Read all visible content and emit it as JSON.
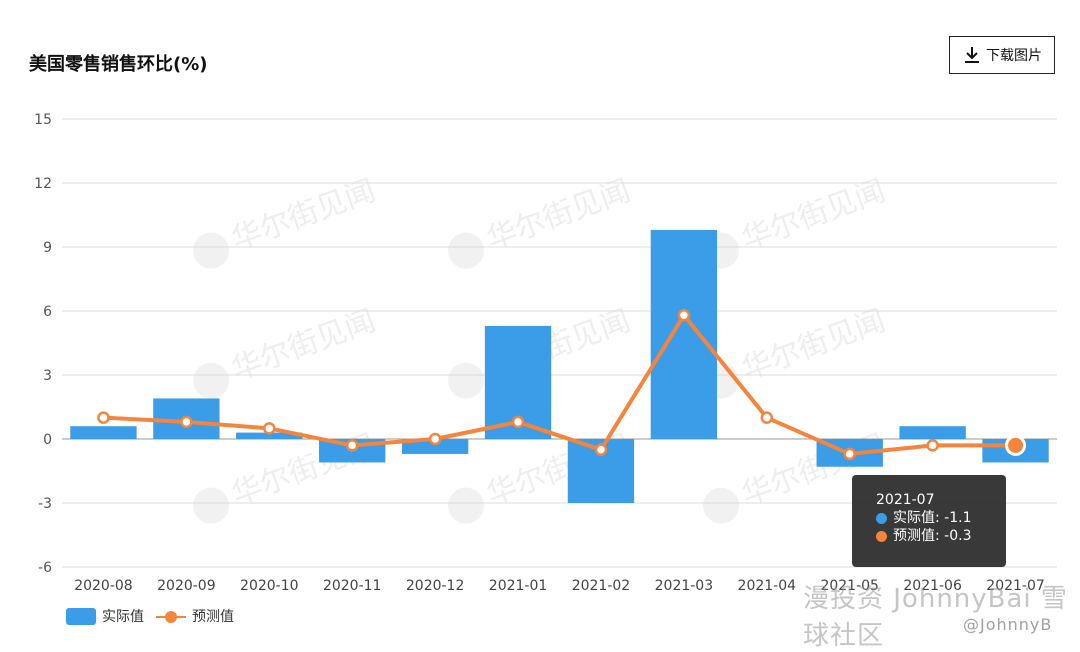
{
  "header": {
    "title": "美国零售销售环比(%)",
    "download_label": "下载图片"
  },
  "chart_data": {
    "type": "bar",
    "title": "美国零售销售环比(%)",
    "categories": [
      "2020-08",
      "2020-09",
      "2020-10",
      "2020-11",
      "2020-12",
      "2021-01",
      "2021-02",
      "2021-03",
      "2021-04",
      "2021-05",
      "2021-06",
      "2021-07"
    ],
    "x_tick_labels": [
      "2020-08",
      "2020-09",
      "2020-10",
      "2020-11",
      "2020-12",
      "2021-01",
      "2021-02",
      "2021-03",
      "2021-04",
      "2021-05",
      "2021-06",
      "2021-07"
    ],
    "series": [
      {
        "name": "实际值",
        "type": "bar",
        "color": "#3b9ce8",
        "values": [
          0.6,
          1.9,
          0.3,
          -1.1,
          -0.7,
          5.3,
          -3.0,
          9.8,
          0.0,
          -1.3,
          0.6,
          -1.1
        ]
      },
      {
        "name": "预测值",
        "type": "line",
        "color": "#f5843d",
        "values": [
          1.0,
          0.8,
          0.5,
          -0.3,
          0.0,
          0.8,
          -0.5,
          5.8,
          1.0,
          -0.7,
          -0.3,
          -0.3
        ]
      }
    ],
    "ylim": [
      -6,
      15
    ],
    "yticks": [
      -6,
      -3,
      0,
      3,
      6,
      9,
      12,
      15
    ],
    "grid": true,
    "legend": "bottom-left"
  },
  "tooltip": {
    "category": "2021-07",
    "rows": [
      {
        "label": "实际值: -1.1",
        "color": "#3b9ce8"
      },
      {
        "label": "预测值: -0.3",
        "color": "#f5843d"
      }
    ]
  },
  "watermarks": {
    "repeated": "华尔街见闻",
    "brand": "漫投资 JohnnyBai 雪球社区",
    "handle": "@JohnnyB"
  }
}
